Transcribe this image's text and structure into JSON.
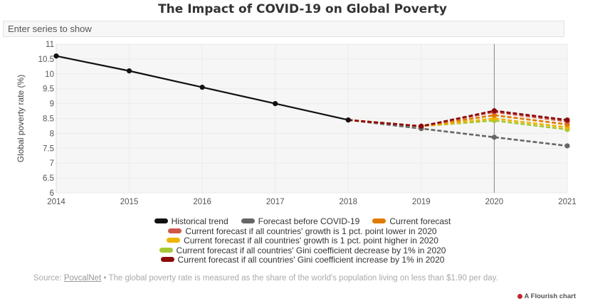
{
  "title": "The Impact of COVID-19 on Global Poverty",
  "search": {
    "placeholder": "Enter series to show"
  },
  "chart_data": {
    "type": "line",
    "title": "The Impact of COVID-19 on Global Poverty",
    "xlabel": "",
    "ylabel": "Global poverty rate (%)",
    "xlim": [
      2014,
      2021
    ],
    "ylim": [
      6,
      11
    ],
    "x_ticks": [
      "2014",
      "2015",
      "2016",
      "2017",
      "2018",
      "2019",
      "2020",
      "2021"
    ],
    "y_ticks": [
      "6",
      "6.5",
      "7",
      "7.5",
      "8",
      "8.5",
      "9",
      "9.5",
      "10",
      "10.5",
      "11"
    ],
    "grid": true,
    "vertical_marker": 2020,
    "legend_position": "bottom",
    "series": [
      {
        "name": "Historical trend",
        "color": "#111111",
        "dashed": false,
        "x": [
          2014,
          2015,
          2016,
          2017,
          2018
        ],
        "values": [
          10.6,
          10.1,
          9.55,
          9.0,
          8.45
        ]
      },
      {
        "name": "Forecast before COVID-19",
        "color": "#666666",
        "dashed": true,
        "x": [
          2018,
          2019,
          2020,
          2021
        ],
        "values": [
          8.45,
          8.16,
          7.87,
          7.58
        ]
      },
      {
        "name": "Current forecast",
        "color": "#e07b00",
        "dashed": true,
        "x": [
          2018,
          2019,
          2020,
          2021
        ],
        "values": [
          8.45,
          8.24,
          8.61,
          8.3
        ]
      },
      {
        "name": "Current forecast if all countries' growth is 1 pct. point lower in 2020",
        "color": "#d0564a",
        "dashed": true,
        "x": [
          2018,
          2019,
          2020,
          2021
        ],
        "values": [
          8.45,
          8.24,
          8.72,
          8.4
        ]
      },
      {
        "name": "Current forecast if all countries' growth is 1 pct. point higher in 2020",
        "color": "#efb400",
        "dashed": true,
        "x": [
          2018,
          2019,
          2020,
          2021
        ],
        "values": [
          8.45,
          8.24,
          8.5,
          8.2
        ]
      },
      {
        "name": "Current forecast if all countries' Gini coefficient decrease by 1% in 2020",
        "color": "#a6c832",
        "dashed": true,
        "x": [
          2018,
          2019,
          2020,
          2021
        ],
        "values": [
          8.45,
          8.24,
          8.43,
          8.13
        ]
      },
      {
        "name": "Current forecast if all countries' Gini coefficient increase by 1% in 2020",
        "color": "#8b0a0a",
        "dashed": true,
        "x": [
          2018,
          2019,
          2020,
          2021
        ],
        "values": [
          8.45,
          8.24,
          8.76,
          8.45
        ]
      }
    ]
  },
  "footer": {
    "source_prefix": "Source: ",
    "source_link": "PovcalNet",
    "note": " • The global poverty rate is measured as the share of the world's population living on less than $1.90 per day."
  },
  "branding": "A Flourish chart"
}
